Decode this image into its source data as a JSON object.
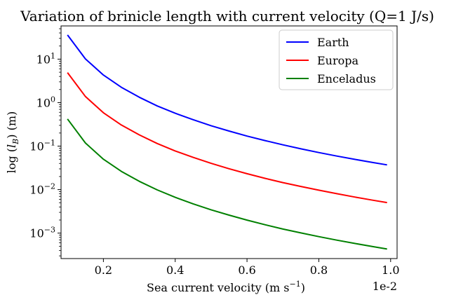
{
  "chart_data": {
    "type": "line",
    "title": "Variation of brinicle length with current velocity (Q=1 J/s)",
    "xlabel": "Sea current velocity (m s⁻¹)",
    "ylabel": "log (l_B) (m)",
    "x_offset_text": "1e-2",
    "x_scale_factor": 0.01,
    "xlim": [
      0.082,
      1.018
    ],
    "ylim": [
      0.00026,
      58
    ],
    "yscale": "log",
    "grid": false,
    "legend_position": "top-right",
    "x_ticks": [
      0.2,
      0.4,
      0.6,
      0.8,
      1.0
    ],
    "x_tick_labels": [
      "0.2",
      "0.4",
      "0.6",
      "0.8",
      "1.0"
    ],
    "y_ticks": [
      0.001,
      0.01,
      0.1,
      1,
      10
    ],
    "y_tick_bases": [
      "10",
      "10",
      "10",
      "10",
      "10"
    ],
    "y_tick_exponents": [
      "−3",
      "−2",
      "−1",
      "0",
      "1"
    ],
    "x": [
      0.1,
      0.15,
      0.2,
      0.25,
      0.3,
      0.35,
      0.4,
      0.45,
      0.5,
      0.55,
      0.6,
      0.65,
      0.7,
      0.75,
      0.8,
      0.85,
      0.9,
      0.95,
      0.99
    ],
    "series": [
      {
        "name": "Earth",
        "color": "#0000ff",
        "values": [
          36,
          10.1,
          4.3,
          2.25,
          1.33,
          0.84,
          0.57,
          0.405,
          0.295,
          0.222,
          0.17,
          0.134,
          0.107,
          0.0867,
          0.0713,
          0.0592,
          0.0497,
          0.042,
          0.037
        ]
      },
      {
        "name": "Europa",
        "color": "#ff0000",
        "values": [
          4.9,
          1.38,
          0.585,
          0.306,
          0.181,
          0.115,
          0.0776,
          0.0551,
          0.0402,
          0.0302,
          0.0232,
          0.0182,
          0.0145,
          0.0118,
          0.0097,
          0.00806,
          0.00676,
          0.00572,
          0.00504
        ]
      },
      {
        "name": "Enceladus",
        "color": "#008000",
        "values": [
          0.42,
          0.118,
          0.0501,
          0.0262,
          0.0155,
          0.00985,
          0.00665,
          0.00472,
          0.00344,
          0.00259,
          0.00199,
          0.00156,
          0.00124,
          0.00101,
          0.00083,
          0.00069,
          0.00058,
          0.00049,
          0.00043
        ]
      }
    ]
  }
}
